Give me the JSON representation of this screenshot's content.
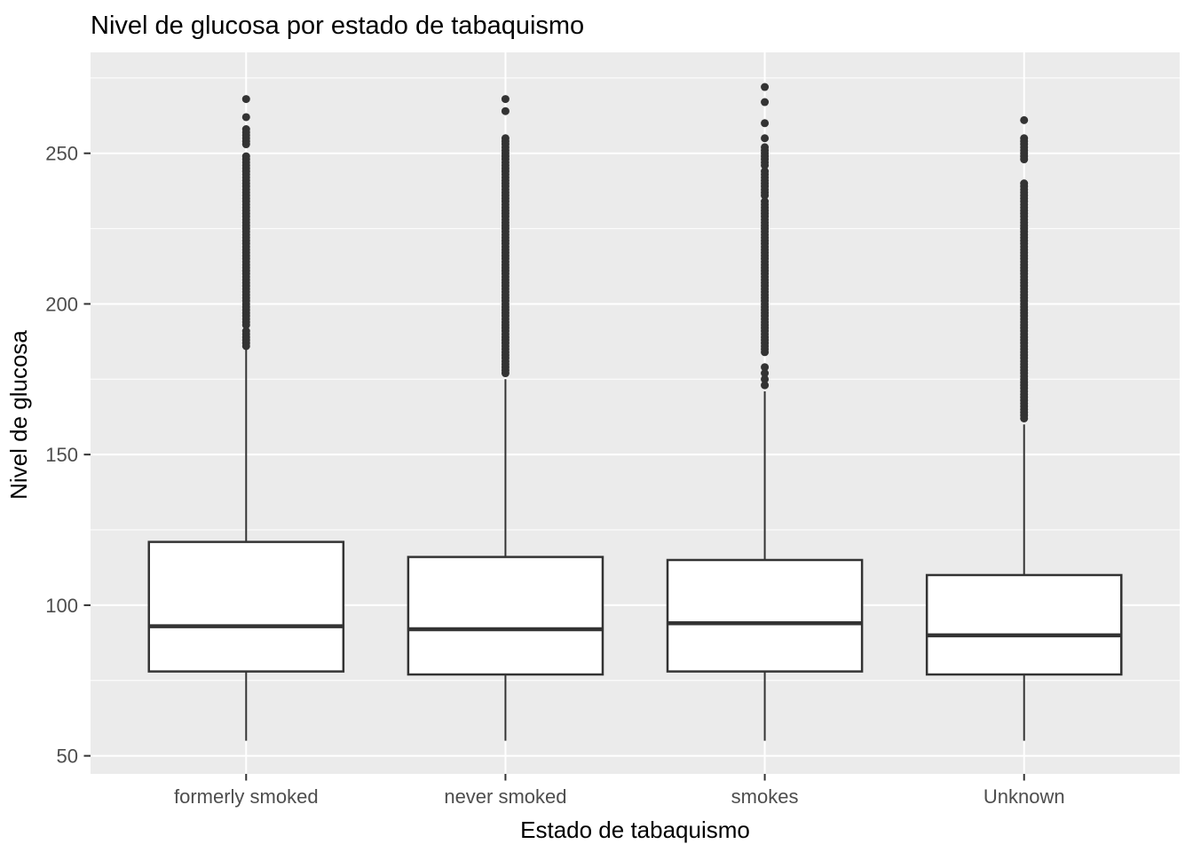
{
  "chart_data": {
    "type": "boxplot",
    "title": "Nivel de glucosa por estado de tabaquismo",
    "xlabel": "Estado de tabaquismo",
    "ylabel": "Nivel de glucosa",
    "categories": [
      "formerly smoked",
      "never smoked",
      "smokes",
      "Unknown"
    ],
    "y_ticks": [
      50,
      100,
      150,
      200,
      250
    ],
    "y_minor_ticks": [
      75,
      125,
      175,
      225,
      275
    ],
    "ylim": [
      44,
      283.5
    ],
    "grid": true,
    "legend": "none",
    "boxes": [
      {
        "category": "formerly smoked",
        "whisker_low": 55,
        "q1": 78,
        "median": 93,
        "q3": 121,
        "whisker_high": 185,
        "outliers": [
          268,
          262,
          258,
          257,
          256,
          255,
          254,
          253,
          249,
          248,
          247,
          246,
          245,
          244,
          243,
          242,
          241,
          240,
          239,
          238,
          237,
          236,
          235,
          234,
          233,
          232,
          231,
          230,
          229,
          228,
          227,
          226,
          225,
          224,
          223,
          222,
          221,
          220,
          219,
          218,
          217,
          216,
          215,
          214,
          213,
          212,
          211,
          210,
          209,
          208,
          207,
          206,
          205,
          204,
          203,
          202,
          201,
          200,
          199,
          198,
          197,
          196,
          195,
          194,
          193,
          191,
          190,
          189,
          188,
          187,
          186
        ]
      },
      {
        "category": "never smoked",
        "whisker_low": 55,
        "q1": 77,
        "median": 92,
        "q3": 116,
        "whisker_high": 175,
        "outliers": [
          268,
          264,
          255,
          254,
          253,
          252,
          251,
          250,
          249,
          248,
          247,
          246,
          245,
          244,
          243,
          242,
          241,
          240,
          239,
          238,
          237,
          236,
          235,
          234,
          233,
          232,
          231,
          230,
          229,
          228,
          227,
          226,
          225,
          224,
          223,
          222,
          221,
          220,
          219,
          218,
          217,
          216,
          215,
          214,
          213,
          212,
          211,
          210,
          209,
          208,
          207,
          206,
          205,
          204,
          203,
          202,
          201,
          200,
          199,
          198,
          197,
          196,
          195,
          194,
          193,
          192,
          191,
          190,
          189,
          188,
          187,
          186,
          185,
          184,
          183,
          182,
          181,
          180,
          179,
          178,
          177
        ]
      },
      {
        "category": "smokes",
        "whisker_low": 55,
        "q1": 78,
        "median": 94,
        "q3": 115,
        "whisker_high": 171,
        "outliers": [
          272,
          267,
          260,
          255,
          252,
          251,
          250,
          249,
          248,
          247,
          246,
          244,
          243,
          242,
          241,
          240,
          239,
          238,
          237,
          236,
          234,
          233,
          232,
          231,
          230,
          229,
          228,
          227,
          226,
          225,
          224,
          223,
          222,
          221,
          220,
          219,
          218,
          217,
          216,
          215,
          214,
          213,
          212,
          211,
          210,
          209,
          208,
          207,
          206,
          205,
          204,
          203,
          202,
          201,
          200,
          199,
          198,
          197,
          196,
          195,
          194,
          193,
          192,
          191,
          190,
          189,
          188,
          187,
          186,
          185,
          184,
          179,
          177,
          175,
          173
        ]
      },
      {
        "category": "Unknown",
        "whisker_low": 55,
        "q1": 77,
        "median": 90,
        "q3": 110,
        "whisker_high": 160,
        "outliers": [
          261,
          255,
          254,
          253,
          252,
          251,
          250,
          249,
          248,
          240,
          239,
          238,
          237,
          236,
          235,
          234,
          233,
          232,
          231,
          230,
          229,
          228,
          227,
          226,
          225,
          224,
          223,
          222,
          221,
          220,
          219,
          218,
          217,
          216,
          215,
          214,
          213,
          212,
          211,
          210,
          209,
          208,
          207,
          206,
          205,
          204,
          203,
          202,
          201,
          200,
          199,
          198,
          197,
          196,
          195,
          194,
          193,
          192,
          191,
          190,
          189,
          188,
          187,
          186,
          185,
          184,
          183,
          182,
          181,
          180,
          179,
          178,
          177,
          176,
          175,
          174,
          173,
          172,
          171,
          170,
          169,
          168,
          167,
          166,
          165,
          164,
          163,
          162
        ]
      }
    ],
    "colors": {
      "panel_bg": "#EBEBEB",
      "grid": "#FFFFFF",
      "box_fill": "#FFFFFF",
      "box_stroke": "#333333",
      "point": "#333333",
      "tick_label": "#4D4D4D",
      "tick_mark": "#333333",
      "title": "#000000"
    }
  }
}
